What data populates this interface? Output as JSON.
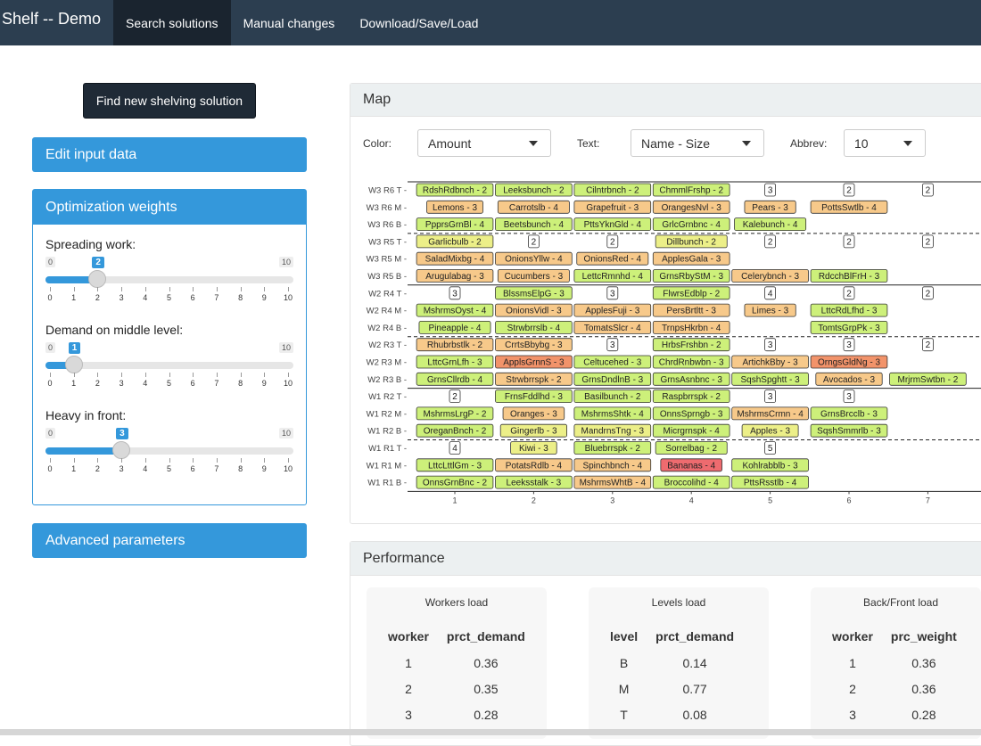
{
  "nav": {
    "brand": "Shelf -- Demo",
    "tabs": [
      "Search solutions",
      "Manual changes",
      "Download/Save/Load"
    ]
  },
  "left": {
    "find_button": "Find new shelving solution",
    "edit_input": "Edit input data",
    "weights_title": "Optimization weights",
    "advanced": "Advanced parameters",
    "sliders": [
      {
        "label": "Spreading work:",
        "min": "0",
        "max": "10",
        "value": 2
      },
      {
        "label": "Demand on middle level:",
        "min": "0",
        "max": "10",
        "value": 1
      },
      {
        "label": "Heavy in front:",
        "min": "0",
        "max": "10",
        "value": 3
      }
    ],
    "ticks": [
      "0",
      "1",
      "2",
      "3",
      "4",
      "5",
      "6",
      "7",
      "8",
      "9",
      "10"
    ]
  },
  "map": {
    "title": "Map",
    "color_label": "Color:",
    "color_value": "Amount",
    "text_label": "Text:",
    "text_value": "Name - Size",
    "abbrev_label": "Abbrev:",
    "abbrev_value": "10",
    "row_labels": [
      "W3 R6 T",
      "W3 R6 M",
      "W3 R6 B",
      "W3 R5 T",
      "W3 R5 M",
      "W3 R5 B",
      "W2 R4 T",
      "W2 R4 M",
      "W2 R4 B",
      "W2 R3 T",
      "W2 R3 M",
      "W2 R3 B",
      "W1 R2 T",
      "W1 R2 M",
      "W1 R2 B",
      "W1 R1 T",
      "W1 R1 M",
      "W1 R1 B"
    ],
    "x_ticks": [
      "1",
      "2",
      "3",
      "4",
      "5",
      "6",
      "7"
    ],
    "cells": [
      [
        [
          "RdshRdbnch - 2",
          "g"
        ],
        [
          "Leeksbunch - 2",
          "g"
        ],
        [
          "Cilntrbnch - 2",
          "g"
        ],
        [
          "ChmmlFrshp - 2",
          "g"
        ],
        [
          "3",
          "w"
        ],
        [
          "2",
          "w"
        ],
        [
          "2",
          "w"
        ]
      ],
      [
        [
          "Lemons - 3",
          "o"
        ],
        [
          "Carrotslb - 4",
          "o"
        ],
        [
          "Grapefruit - 3",
          "o"
        ],
        [
          "OrangesNvl - 3",
          "o"
        ],
        [
          "Pears - 3",
          "o"
        ],
        [
          "PottsSwtlb - 4",
          "o"
        ]
      ],
      [
        [
          "PpprsGrnBl - 4",
          "g"
        ],
        [
          "Beetsbunch - 4",
          "g"
        ],
        [
          "PttsYknGld - 4",
          "g"
        ],
        [
          "GrlcGrnbnc - 4",
          "g"
        ],
        [
          "Kalebunch - 4",
          "g"
        ]
      ],
      [
        [
          "Garlicbulb - 2",
          "y"
        ],
        [
          "2",
          "w"
        ],
        [
          "2",
          "w"
        ],
        [
          "Dillbunch - 2",
          "y"
        ],
        [
          "2",
          "w"
        ],
        [
          "2",
          "w"
        ],
        [
          "2",
          "w"
        ]
      ],
      [
        [
          "SaladMixbg - 4",
          "o"
        ],
        [
          "OnionsYllw - 4",
          "o"
        ],
        [
          "OnionsRed - 4",
          "o"
        ],
        [
          "ApplesGala - 3",
          "o"
        ]
      ],
      [
        [
          "Arugulabag - 3",
          "o"
        ],
        [
          "Cucumbers - 3",
          "o"
        ],
        [
          "LettcRmnhd - 4",
          "g"
        ],
        [
          "GrnsRbyStM - 3",
          "g"
        ],
        [
          "Celerybnch - 3",
          "o"
        ],
        [
          "RdcchBlFrH - 3",
          "g"
        ]
      ],
      [
        [
          "3",
          "w"
        ],
        [
          "BlssmsElpG - 3",
          "g"
        ],
        [
          "3",
          "w"
        ],
        [
          "FlwrsEdblp - 2",
          "g"
        ],
        [
          "4",
          "w"
        ],
        [
          "2",
          "w"
        ],
        [
          "2",
          "w"
        ]
      ],
      [
        [
          "MshrmsOyst - 4",
          "g"
        ],
        [
          "OnionsVidl - 3",
          "o"
        ],
        [
          "ApplesFuji - 3",
          "o"
        ],
        [
          "PersBrtltt - 3",
          "o"
        ],
        [
          "Limes - 3",
          "o"
        ],
        [
          "LttcRdLfhd - 3",
          "g"
        ]
      ],
      [
        [
          "Pineapple - 4",
          "g"
        ],
        [
          "Strwbrrslb - 4",
          "g"
        ],
        [
          "TomatsSlcr - 4",
          "o"
        ],
        [
          "TrnpsHkrbn - 4",
          "o"
        ],
        [
          "",
          "n"
        ],
        [
          "TomtsGrpPk - 3",
          "g"
        ]
      ],
      [
        [
          "Rhubrbstlk - 2",
          "o"
        ],
        [
          "CrrtsBbybg - 3",
          "o"
        ],
        [
          "3",
          "w"
        ],
        [
          "HrbsFrshbn - 2",
          "g"
        ],
        [
          "3",
          "w"
        ],
        [
          "3",
          "w"
        ],
        [
          "2",
          "w"
        ]
      ],
      [
        [
          "LttcGrnLfh - 3",
          "g"
        ],
        [
          "ApplsGrnnS - 3",
          "r"
        ],
        [
          "Celtucehed - 3",
          "g"
        ],
        [
          "ChrdRnbwbn - 3",
          "g"
        ],
        [
          "ArtichkBby - 3",
          "o"
        ],
        [
          "OrngsGldNg - 3",
          "r"
        ]
      ],
      [
        [
          "GrnsCllrdb - 4",
          "g"
        ],
        [
          "Strwbrrspk - 2",
          "o"
        ],
        [
          "GrnsDndlnB - 3",
          "g"
        ],
        [
          "GrnsAsnbnc - 3",
          "g"
        ],
        [
          "SqshSpghtt - 3",
          "g"
        ],
        [
          "Avocados - 3",
          "o"
        ],
        [
          "MrjrmSwtbn - 2",
          "g"
        ]
      ],
      [
        [
          "2",
          "w"
        ],
        [
          "FrnsFddlhd - 3",
          "g"
        ],
        [
          "Basilbunch - 2",
          "g"
        ],
        [
          "Raspbrrspk - 2",
          "g"
        ],
        [
          "3",
          "w"
        ],
        [
          "3",
          "w"
        ]
      ],
      [
        [
          "MshrmsLrgP - 2",
          "g"
        ],
        [
          "Oranges - 3",
          "o"
        ],
        [
          "MshrmsShtk - 4",
          "g"
        ],
        [
          "OnnsSprngb - 3",
          "g"
        ],
        [
          "MshrmsCrmn - 4",
          "o"
        ],
        [
          "GrnsBrcclb - 3",
          "g"
        ]
      ],
      [
        [
          "OreganBnch - 2",
          "g"
        ],
        [
          "Gingerlb - 3",
          "y"
        ],
        [
          "MandrnsTng - 3",
          "y"
        ],
        [
          "Micrgrnspk - 4",
          "g"
        ],
        [
          "Apples - 3",
          "y"
        ],
        [
          "SqshSmmrlb - 3",
          "g"
        ]
      ],
      [
        [
          "4",
          "w"
        ],
        [
          "Kiwi - 3",
          "y"
        ],
        [
          "Bluebrrspk - 2",
          "g"
        ],
        [
          "Sorrelbag - 2",
          "g"
        ],
        [
          "5",
          "w"
        ]
      ],
      [
        [
          "LttcLttlGm - 3",
          "g"
        ],
        [
          "PotatsRdlb - 4",
          "o"
        ],
        [
          "Spinchbnch - 4",
          "o"
        ],
        [
          "Bananas - 4",
          "r2"
        ],
        [
          "Kohlrabblb - 3",
          "g"
        ]
      ],
      [
        [
          "OnnsGrnBnc - 2",
          "g"
        ],
        [
          "Leeksstalk - 3",
          "g"
        ],
        [
          "MshrmsWhtB - 4",
          "o"
        ],
        [
          "Broccolihd - 4",
          "g"
        ],
        [
          "PttsRsstlb - 4",
          "g"
        ]
      ]
    ],
    "colors": {
      "g": "#cdf07a",
      "o": "#f7c98a",
      "y": "#ecef88",
      "r": "#f2936a",
      "r2": "#ee6b6f",
      "w": "#ffffff"
    }
  },
  "performance": {
    "title": "Performance",
    "tables": [
      {
        "title": "Workers load",
        "cols": [
          "worker",
          "prct_demand"
        ],
        "rows": [
          [
            "1",
            "0.36"
          ],
          [
            "2",
            "0.35"
          ],
          [
            "3",
            "0.28"
          ]
        ]
      },
      {
        "title": "Levels load",
        "cols": [
          "level",
          "prct_demand"
        ],
        "rows": [
          [
            "B",
            "0.14"
          ],
          [
            "M",
            "0.77"
          ],
          [
            "T",
            "0.08"
          ]
        ]
      },
      {
        "title": "Back/Front load",
        "cols": [
          "worker",
          "prc_weight"
        ],
        "rows": [
          [
            "1",
            "0.36"
          ],
          [
            "2",
            "0.36"
          ],
          [
            "3",
            "0.28"
          ]
        ]
      }
    ]
  }
}
